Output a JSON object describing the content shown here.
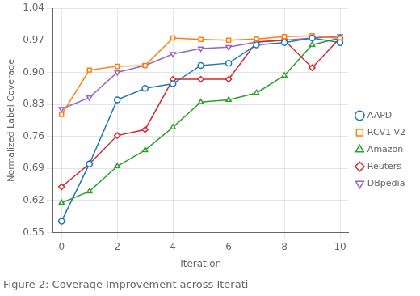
{
  "chart_data": {
    "type": "line",
    "caption": "Figure 2: Coverage Improvement across Iterati",
    "xlabel": "Iteration",
    "ylabel": "Normalized Label Coverage",
    "x": [
      0,
      1,
      2,
      3,
      4,
      5,
      6,
      7,
      8,
      9,
      10
    ],
    "series": [
      {
        "name": "AAPD",
        "color": "#1f77b4",
        "marker": "circle",
        "values": [
          0.575,
          0.7,
          0.84,
          0.865,
          0.875,
          0.915,
          0.92,
          0.96,
          0.965,
          0.975,
          0.965
        ]
      },
      {
        "name": "RCV1-V2",
        "color": "#ff7f0e",
        "marker": "square",
        "values": [
          0.808,
          0.905,
          0.913,
          0.915,
          0.975,
          0.972,
          0.97,
          0.973,
          0.978,
          0.98,
          0.974
        ]
      },
      {
        "name": "Amazon",
        "color": "#2ca02c",
        "marker": "triangle",
        "values": [
          0.615,
          0.64,
          0.695,
          0.73,
          0.78,
          0.835,
          0.84,
          0.855,
          0.893,
          0.96,
          0.975
        ]
      },
      {
        "name": "Reuters",
        "color": "#d62728",
        "marker": "diamond",
        "values": [
          0.65,
          0.7,
          0.762,
          0.775,
          0.885,
          0.885,
          0.885,
          0.966,
          0.97,
          0.91,
          0.975
        ]
      },
      {
        "name": "DBpedia",
        "color": "#9467bd",
        "marker": "triangle_down",
        "values": [
          0.82,
          0.845,
          0.9,
          0.915,
          0.94,
          0.952,
          0.955,
          0.966,
          0.97,
          0.975,
          0.979
        ]
      }
    ],
    "xlim": [
      -0.3,
      10.3
    ],
    "xticks": [
      0,
      2,
      4,
      6,
      8,
      10
    ],
    "ylim": [
      0.55,
      1.04
    ],
    "yticks": [
      0.55,
      0.62,
      0.69,
      0.76,
      0.83,
      {
        "value": 0.9,
        "label": "0.90"
      },
      0.97,
      1.04
    ],
    "grid": true,
    "legend": "right"
  }
}
